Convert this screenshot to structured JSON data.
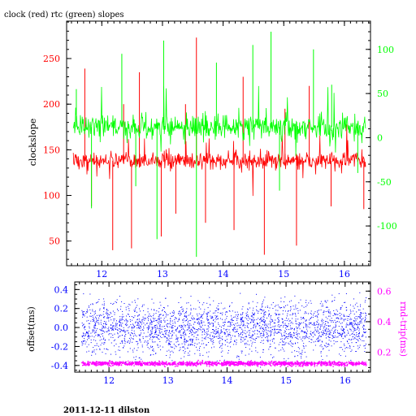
{
  "footer": "2011-12-11 dilston",
  "colors": {
    "clock": "#ff0000",
    "rtc": "#00ff00",
    "offset": "#0000ff",
    "roundtrip": "#ff00ff",
    "axis": "#000000"
  },
  "chart_data": [
    {
      "type": "line",
      "title": "clock (red) rtc (green) slopes",
      "xlabel": "",
      "ylabel": "clockslope",
      "y2label": "",
      "xlim": [
        11.42,
        16.43
      ],
      "ylim": [
        23,
        291
      ],
      "y2lim": [
        -145,
        132
      ],
      "xticks": [
        12,
        13,
        14,
        15,
        16
      ],
      "yticks": [
        50,
        100,
        150,
        200,
        250
      ],
      "y2ticks": [
        -100,
        -50,
        0,
        50,
        100
      ],
      "grid": false,
      "series": [
        {
          "color": "#ff0000",
          "axis": "left",
          "x_range": [
            11.53,
            16.35
          ],
          "baseline": 138,
          "band": 7,
          "spikes": [
            {
              "x": 11.72,
              "y": 239
            },
            {
              "x": 11.83,
              "y": 88
            },
            {
              "x": 12.18,
              "y": 40
            },
            {
              "x": 12.36,
              "y": 200
            },
            {
              "x": 12.49,
              "y": 42
            },
            {
              "x": 12.62,
              "y": 235
            },
            {
              "x": 12.98,
              "y": 55
            },
            {
              "x": 13.22,
              "y": 80
            },
            {
              "x": 13.38,
              "y": 200
            },
            {
              "x": 13.56,
              "y": 273
            },
            {
              "x": 13.71,
              "y": 70
            },
            {
              "x": 14.18,
              "y": 62
            },
            {
              "x": 14.33,
              "y": 230
            },
            {
              "x": 14.68,
              "y": 35
            },
            {
              "x": 15.02,
              "y": 195
            },
            {
              "x": 15.21,
              "y": 45
            },
            {
              "x": 15.42,
              "y": 220
            },
            {
              "x": 15.78,
              "y": 88
            },
            {
              "x": 16.32,
              "y": 85
            }
          ]
        },
        {
          "color": "#00ff00",
          "axis": "right",
          "x_range": [
            11.53,
            16.35
          ],
          "baseline": 12,
          "band": 10,
          "spikes": [
            {
              "x": 11.58,
              "y": 55
            },
            {
              "x": 11.83,
              "y": -80
            },
            {
              "x": 12.33,
              "y": 95
            },
            {
              "x": 12.56,
              "y": -55
            },
            {
              "x": 12.91,
              "y": -115
            },
            {
              "x": 13.02,
              "y": 110
            },
            {
              "x": 13.56,
              "y": -135
            },
            {
              "x": 13.89,
              "y": 85
            },
            {
              "x": 14.49,
              "y": 105
            },
            {
              "x": 14.79,
              "y": 120
            },
            {
              "x": 14.93,
              "y": -60
            },
            {
              "x": 15.49,
              "y": 100
            },
            {
              "x": 15.79,
              "y": 60
            },
            {
              "x": 16.22,
              "y": -40
            }
          ]
        }
      ]
    },
    {
      "type": "scatter",
      "title": "",
      "xlabel": "",
      "ylabel": "offset(ms)",
      "y2label": "rnd-trip(ms)",
      "xlim": [
        11.42,
        16.43
      ],
      "ylim": [
        -0.47,
        0.48
      ],
      "y2lim": [
        0.07,
        0.66
      ],
      "xticks": [
        12,
        13,
        14,
        15,
        16
      ],
      "yticks": [
        -0.4,
        -0.2,
        0,
        0.2,
        0.4
      ],
      "y2ticks": [
        0.2,
        0.4,
        0.6
      ],
      "grid": false,
      "series": [
        {
          "color": "#0000ff",
          "axis": "left",
          "x_range": [
            11.53,
            16.35
          ],
          "y_center": 0.0,
          "y_spread": 0.45
        },
        {
          "color": "#ff00ff",
          "axis": "right",
          "x_range": [
            11.53,
            16.35
          ],
          "y_center": 0.13,
          "y_spread": 0.01
        }
      ]
    }
  ]
}
